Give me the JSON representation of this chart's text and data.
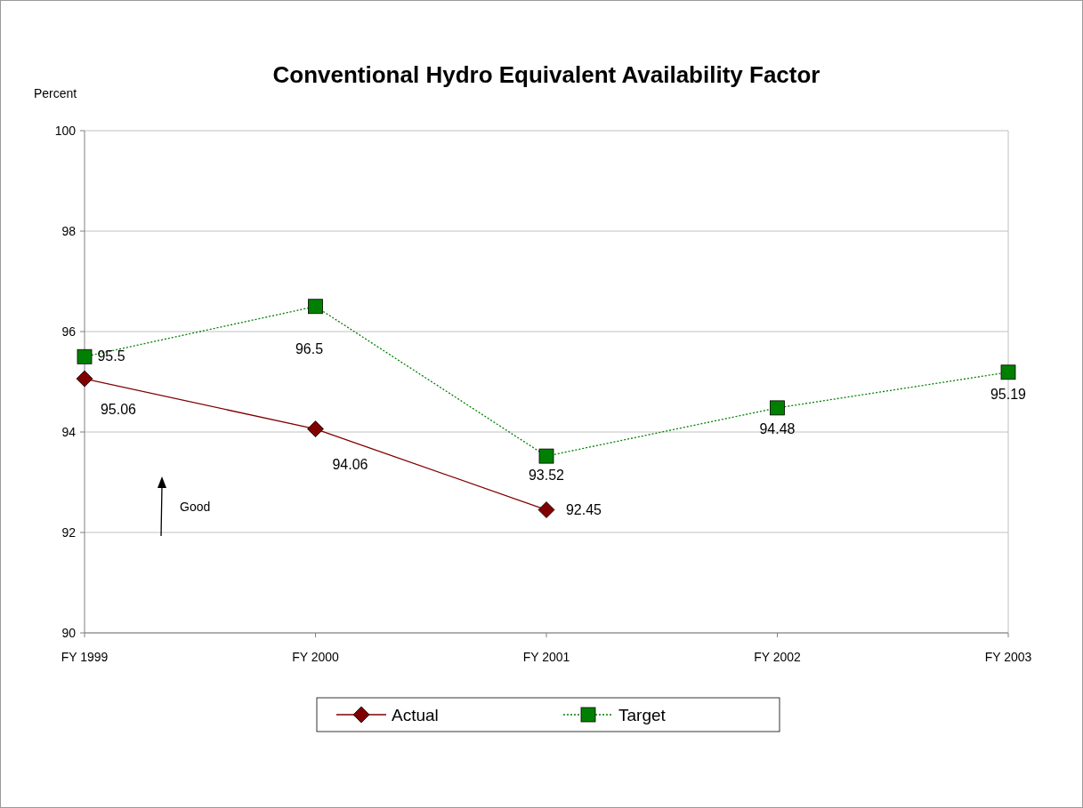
{
  "chart_data": {
    "type": "line",
    "title": "Conventional Hydro Equivalent Availability Factor",
    "ylabel": "Percent",
    "categories": [
      "FY 1999",
      "FY 2000",
      "FY 2001",
      "FY 2002",
      "FY 2003"
    ],
    "series": [
      {
        "name": "Actual",
        "color": "#800000",
        "values": [
          95.06,
          94.06,
          92.45,
          null,
          null
        ],
        "marker": "diamond",
        "line_style": "solid"
      },
      {
        "name": "Target",
        "color": "#008000",
        "values": [
          95.5,
          96.5,
          93.52,
          94.48,
          95.19
        ],
        "marker": "square",
        "line_style": "dotted"
      }
    ],
    "ylim": [
      90,
      100
    ],
    "yticks": [
      90,
      92,
      94,
      96,
      98,
      100
    ],
    "grid": "y",
    "legend": "bottom",
    "data_labels": true,
    "annotations": [
      "Good"
    ]
  }
}
